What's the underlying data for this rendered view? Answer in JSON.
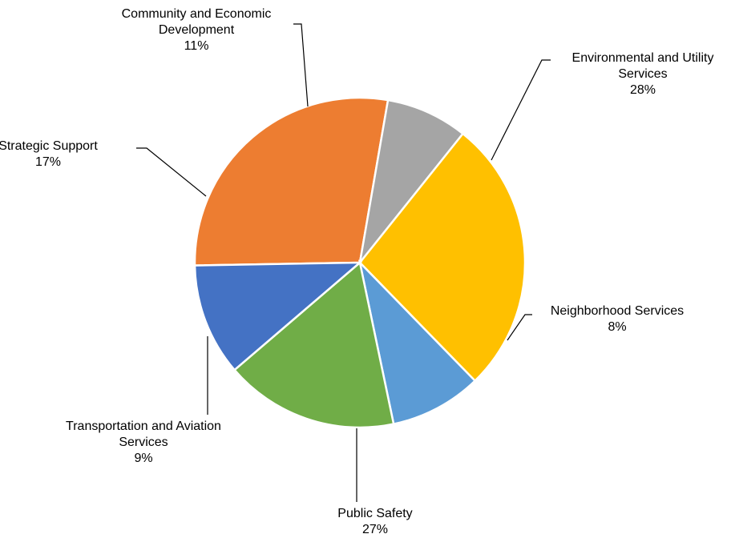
{
  "chart_data": {
    "type": "pie",
    "title": "",
    "slices": [
      {
        "name": "Environmental and Utility Services",
        "label_lines": [
          "Environmental and Utility",
          "Services"
        ],
        "value": 28,
        "value_label": "28%",
        "color": "#ED7D31"
      },
      {
        "name": "Neighborhood Services",
        "label_lines": [
          "Neighborhood Services"
        ],
        "value": 8,
        "value_label": "8%",
        "color": "#A5A5A5"
      },
      {
        "name": "Public Safety",
        "label_lines": [
          "Public Safety"
        ],
        "value": 27,
        "value_label": "27%",
        "color": "#FFC000"
      },
      {
        "name": "Transportation and Aviation Services",
        "label_lines": [
          "Transportation and Aviation",
          "Services"
        ],
        "value": 9,
        "value_label": "9%",
        "color": "#5B9BD5"
      },
      {
        "name": "Strategic Support",
        "label_lines": [
          "Strategic Support"
        ],
        "value": 17,
        "value_label": "17%",
        "color": "#70AD47"
      },
      {
        "name": "Community and Economic Development",
        "label_lines": [
          "Community and Economic",
          "Development"
        ],
        "value": 11,
        "value_label": "11%",
        "color": "#4472C4"
      }
    ]
  }
}
